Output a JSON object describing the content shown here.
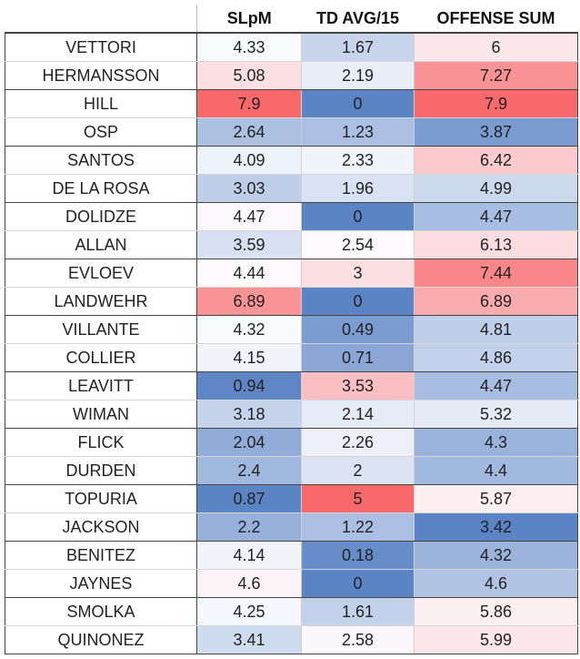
{
  "headers": {
    "name": "",
    "slpm": "SLpM",
    "td": "TD AVG/15",
    "offense": "OFFENSE SUM"
  },
  "colors": {
    "low": "#5b84c4",
    "mid": "#fcfcff",
    "high": "#f8696b"
  },
  "ranges": {
    "slpm": [
      0.87,
      7.9
    ],
    "td": [
      0,
      5
    ],
    "offense": [
      3.42,
      7.9
    ]
  },
  "rows": [
    {
      "name": "VETTORI",
      "slpm": "4.33",
      "td": "1.67",
      "offense": "6"
    },
    {
      "name": "HERMANSSON",
      "slpm": "5.08",
      "td": "2.19",
      "offense": "7.27"
    },
    {
      "name": "HILL",
      "slpm": "7.9",
      "td": "0",
      "offense": "7.9"
    },
    {
      "name": "OSP",
      "slpm": "2.64",
      "td": "1.23",
      "offense": "3.87"
    },
    {
      "name": "SANTOS",
      "slpm": "4.09",
      "td": "2.33",
      "offense": "6.42"
    },
    {
      "name": "DE LA ROSA",
      "slpm": "3.03",
      "td": "1.96",
      "offense": "4.99"
    },
    {
      "name": "DOLIDZE",
      "slpm": "4.47",
      "td": "0",
      "offense": "4.47"
    },
    {
      "name": "ALLAN",
      "slpm": "3.59",
      "td": "2.54",
      "offense": "6.13"
    },
    {
      "name": "EVLOEV",
      "slpm": "4.44",
      "td": "3",
      "offense": "7.44"
    },
    {
      "name": "LANDWEHR",
      "slpm": "6.89",
      "td": "0",
      "offense": "6.89"
    },
    {
      "name": "VILLANTE",
      "slpm": "4.32",
      "td": "0.49",
      "offense": "4.81"
    },
    {
      "name": "COLLIER",
      "slpm": "4.15",
      "td": "0.71",
      "offense": "4.86"
    },
    {
      "name": "LEAVITT",
      "slpm": "0.94",
      "td": "3.53",
      "offense": "4.47"
    },
    {
      "name": "WIMAN",
      "slpm": "3.18",
      "td": "2.14",
      "offense": "5.32"
    },
    {
      "name": "FLICK",
      "slpm": "2.04",
      "td": "2.26",
      "offense": "4.3"
    },
    {
      "name": "DURDEN",
      "slpm": "2.4",
      "td": "2",
      "offense": "4.4"
    },
    {
      "name": "TOPURIA",
      "slpm": "0.87",
      "td": "5",
      "offense": "5.87"
    },
    {
      "name": "JACKSON",
      "slpm": "2.2",
      "td": "1.22",
      "offense": "3.42"
    },
    {
      "name": "BENITEZ",
      "slpm": "4.14",
      "td": "0.18",
      "offense": "4.32"
    },
    {
      "name": "JAYNES",
      "slpm": "4.6",
      "td": "0",
      "offense": "4.6"
    },
    {
      "name": "SMOLKA",
      "slpm": "4.25",
      "td": "1.61",
      "offense": "5.86"
    },
    {
      "name": "QUINONEZ",
      "slpm": "3.41",
      "td": "2.58",
      "offense": "5.99"
    }
  ]
}
